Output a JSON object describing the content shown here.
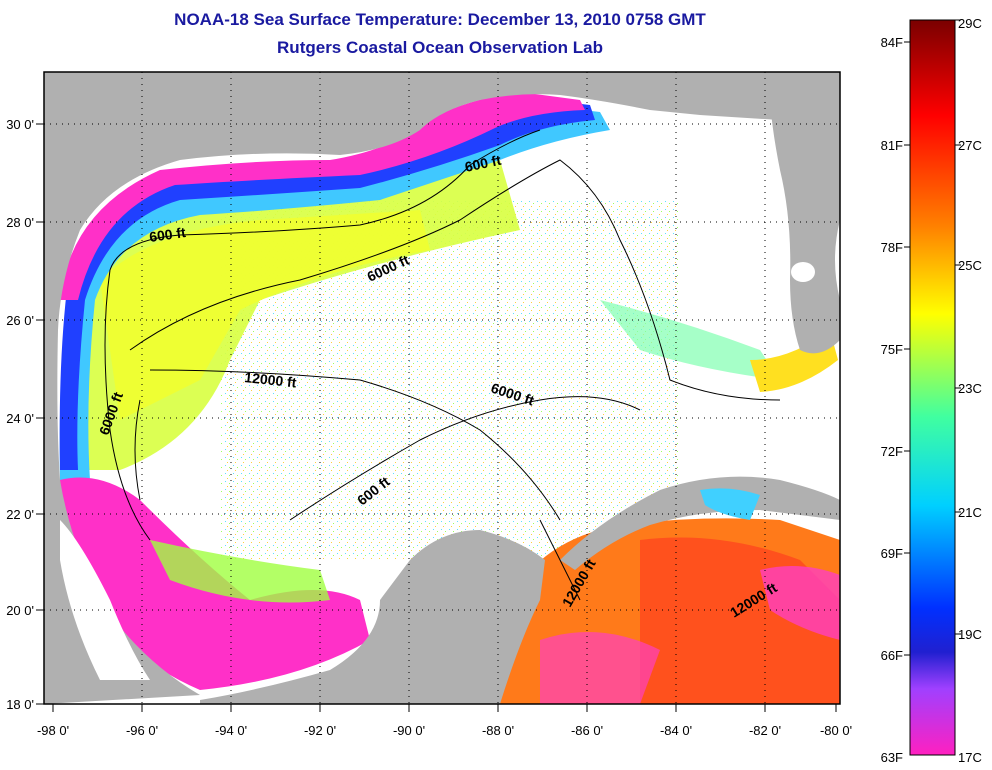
{
  "title": "NOAA-18 Sea Surface Temperature:  December 13, 2010 0758 GMT",
  "subtitle": "Rutgers Coastal Ocean Observation Lab",
  "map": {
    "lon_labels": [
      "-98 0'",
      "-96 0'",
      "-94 0'",
      "-92 0'",
      "-90 0'",
      "-88 0'",
      "-86 0'",
      "-84 0'",
      "-82 0'",
      "-80 0'"
    ],
    "lat_labels": [
      "30 0'",
      "28 0'",
      "26 0'",
      "24 0'",
      "22 0'",
      "20 0'",
      "18 0'"
    ],
    "lon_range": [
      -98,
      -80
    ],
    "lat_range": [
      18,
      31
    ],
    "land_color": "#b0b0b0",
    "contour_labels": [
      "600 ft",
      "600 ft",
      "6000 ft",
      "12000 ft",
      "6000 ft",
      "6000 ft",
      "600 ft",
      "12000 ft",
      "12000 ft"
    ]
  },
  "colorbar": {
    "fahrenheit_labels": [
      "84F",
      "81F",
      "78F",
      "75F",
      "72F",
      "69F",
      "66F",
      "63F"
    ],
    "celsius_labels": [
      "29C",
      "27C",
      "25C",
      "23C",
      "21C",
      "19C",
      "17C"
    ],
    "colors": [
      "#7a0000",
      "#ff0000",
      "#ff7f00",
      "#ffff00",
      "#3fff9f",
      "#00d8ff",
      "#0040ff",
      "#0000cc",
      "#c040ff",
      "#ff20c0"
    ]
  }
}
